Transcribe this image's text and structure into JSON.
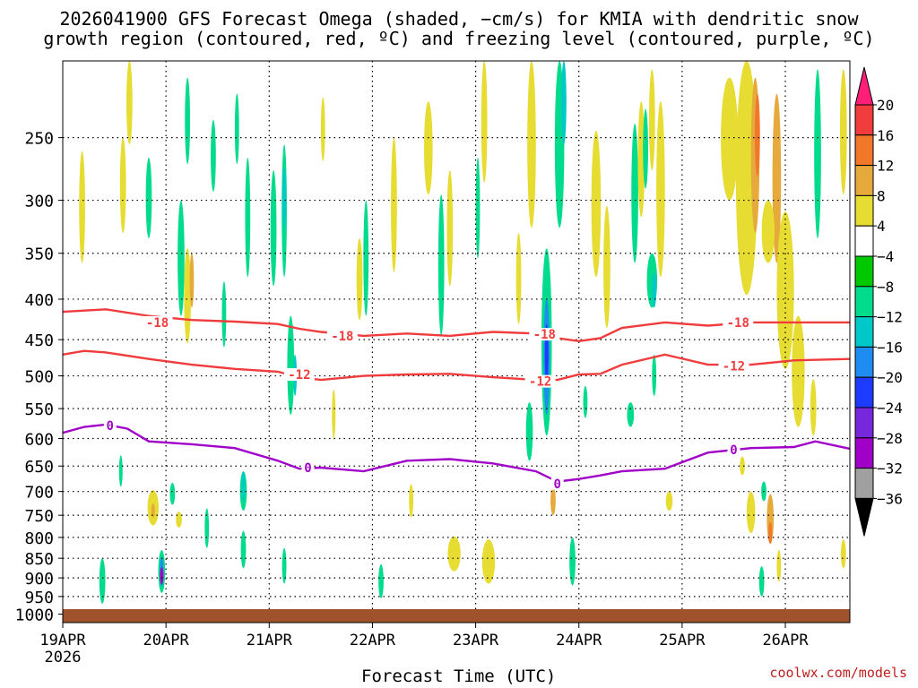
{
  "title_line1": "2026041900 GFS Forecast Omega (shaded, −cm/s) for KMIA with dendritic snow",
  "title_line2": "growth region (contoured, red, ºC) and freezing level (contoured, purple, ºC)",
  "credit": "coolwx.com/models",
  "chart_data": {
    "type": "time-height",
    "xlabel": "Forecast Time (UTC)",
    "ylabel": "Pressure (hPa)",
    "y_ticks": [
      250,
      300,
      350,
      400,
      450,
      500,
      550,
      600,
      650,
      700,
      750,
      800,
      850,
      900,
      950,
      1000
    ],
    "ylim_hpa": [
      200,
      1025
    ],
    "x_ticks": [
      "19APR",
      "20APR",
      "21APR",
      "22APR",
      "23APR",
      "24APR",
      "25APR",
      "26APR"
    ],
    "x_year": "2026",
    "xlim_hours": [
      0,
      183
    ],
    "colorbar": {
      "levels": [
        "20",
        "16",
        "12",
        "8",
        "4",
        "−4",
        "−8",
        "−12",
        "−16",
        "−20",
        "−24",
        "−28",
        "−32",
        "−36"
      ],
      "colors": [
        "#ff1e78",
        "#f03c3c",
        "#f07828",
        "#e6aa3c",
        "#e6dc32",
        "#ffffff",
        "#00c800",
        "#00dc8c",
        "#00c8c8",
        "#1e8cf0",
        "#1e3cff",
        "#7828dc",
        "#a000c8",
        "#a0a0a0",
        "#000000"
      ]
    },
    "contours": [
      {
        "label": "-18",
        "color": "#f03c3c",
        "points": [
          [
            0,
            415
          ],
          [
            10,
            412
          ],
          [
            20,
            420
          ],
          [
            30,
            425
          ],
          [
            40,
            427
          ],
          [
            50,
            430
          ],
          [
            55,
            436
          ],
          [
            60,
            440
          ],
          [
            70,
            445
          ],
          [
            80,
            442
          ],
          [
            90,
            445
          ],
          [
            100,
            440
          ],
          [
            110,
            442
          ],
          [
            115,
            448
          ],
          [
            120,
            452
          ],
          [
            125,
            448
          ],
          [
            130,
            435
          ],
          [
            140,
            428
          ],
          [
            150,
            432
          ],
          [
            160,
            428
          ],
          [
            170,
            428
          ],
          [
            183,
            428
          ]
        ],
        "label_positions": [
          [
            22,
            428
          ],
          [
            65,
            445
          ],
          [
            112,
            443
          ],
          [
            157,
            428
          ]
        ]
      },
      {
        "label": "-12",
        "color": "#f03c3c",
        "points": [
          [
            0,
            470
          ],
          [
            5,
            465
          ],
          [
            10,
            467
          ],
          [
            20,
            476
          ],
          [
            30,
            484
          ],
          [
            40,
            490
          ],
          [
            50,
            494
          ],
          [
            55,
            502
          ],
          [
            60,
            506
          ],
          [
            70,
            500
          ],
          [
            80,
            498
          ],
          [
            90,
            497
          ],
          [
            100,
            502
          ],
          [
            110,
            506
          ],
          [
            115,
            506
          ],
          [
            120,
            498
          ],
          [
            125,
            497
          ],
          [
            130,
            484
          ],
          [
            140,
            470
          ],
          [
            150,
            484
          ],
          [
            160,
            484
          ],
          [
            170,
            478
          ],
          [
            183,
            476
          ]
        ],
        "label_positions": [
          [
            55,
            498
          ],
          [
            111,
            508
          ],
          [
            156,
            486
          ]
        ]
      },
      {
        "label": "0",
        "color": "#a000c8",
        "points": [
          [
            0,
            590
          ],
          [
            5,
            580
          ],
          [
            10,
            576
          ],
          [
            15,
            583
          ],
          [
            20,
            605
          ],
          [
            30,
            610
          ],
          [
            40,
            617
          ],
          [
            50,
            640
          ],
          [
            55,
            655
          ],
          [
            60,
            653
          ],
          [
            70,
            660
          ],
          [
            80,
            640
          ],
          [
            90,
            637
          ],
          [
            100,
            645
          ],
          [
            110,
            660
          ],
          [
            115,
            680
          ],
          [
            120,
            675
          ],
          [
            125,
            668
          ],
          [
            130,
            660
          ],
          [
            140,
            655
          ],
          [
            150,
            625
          ],
          [
            160,
            617
          ],
          [
            170,
            615
          ],
          [
            175,
            605
          ],
          [
            183,
            618
          ]
        ],
        "label_positions": [
          [
            11,
            578
          ],
          [
            57,
            653
          ],
          [
            115,
            684
          ],
          [
            156,
            620
          ]
        ]
      }
    ],
    "omega_cells": [
      {
        "t": 9.2,
        "p": 910,
        "dt": 1.4,
        "dp": 120,
        "v": -8
      },
      {
        "t": 23.0,
        "p": 885,
        "dt": 1.6,
        "dp": 110,
        "v": -8
      },
      {
        "t": 23.0,
        "p": 885,
        "dt": 0.8,
        "dp": 75,
        "v": -16
      },
      {
        "t": 23.0,
        "p": 895,
        "dt": 0.4,
        "dp": 45,
        "v": -28
      },
      {
        "t": 21.0,
        "p": 735,
        "dt": 2.6,
        "dp": 75,
        "v": 6
      },
      {
        "t": 21.0,
        "p": 740,
        "dt": 0.9,
        "dp": 30,
        "v": 9
      },
      {
        "t": 25.5,
        "p": 705,
        "dt": 1.2,
        "dp": 45,
        "v": -8
      },
      {
        "t": 27.0,
        "p": 760,
        "dt": 1.4,
        "dp": 35,
        "v": 5
      },
      {
        "t": 33.5,
        "p": 780,
        "dt": 1.0,
        "dp": 90,
        "v": -8
      },
      {
        "t": 42.0,
        "p": 700,
        "dt": 1.6,
        "dp": 80,
        "v": -8
      },
      {
        "t": 42.0,
        "p": 830,
        "dt": 1.2,
        "dp": 90,
        "v": -8
      },
      {
        "t": 42.0,
        "p": 690,
        "dt": 0.6,
        "dp": 60,
        "v": -12
      },
      {
        "t": 43.0,
        "p": 320,
        "dt": 1.2,
        "dp": 110,
        "v": -8
      },
      {
        "t": 27.5,
        "p": 360,
        "dt": 1.6,
        "dp": 120,
        "v": -8
      },
      {
        "t": 29.0,
        "p": 400,
        "dt": 1.6,
        "dp": 110,
        "v": 5
      },
      {
        "t": 30.0,
        "p": 380,
        "dt": 1.0,
        "dp": 60,
        "v": 8
      },
      {
        "t": 35.0,
        "p": 265,
        "dt": 1.2,
        "dp": 55,
        "v": -8
      },
      {
        "t": 40.5,
        "p": 245,
        "dt": 1.0,
        "dp": 50,
        "v": -8
      },
      {
        "t": 49.0,
        "p": 330,
        "dt": 1.4,
        "dp": 110,
        "v": -8
      },
      {
        "t": 51.5,
        "p": 315,
        "dt": 1.2,
        "dp": 120,
        "v": -8
      },
      {
        "t": 51.5,
        "p": 300,
        "dt": 0.6,
        "dp": 55,
        "v": -12
      },
      {
        "t": 53.0,
        "p": 490,
        "dt": 1.6,
        "dp": 140,
        "v": -8
      },
      {
        "t": 54.0,
        "p": 500,
        "dt": 0.8,
        "dp": 60,
        "v": -12
      },
      {
        "t": 51.5,
        "p": 870,
        "dt": 1.0,
        "dp": 90,
        "v": -8
      },
      {
        "t": 60.5,
        "p": 245,
        "dt": 1.0,
        "dp": 45,
        "v": 5
      },
      {
        "t": 63.0,
        "p": 560,
        "dt": 0.8,
        "dp": 80,
        "v": 5
      },
      {
        "t": 69.0,
        "p": 380,
        "dt": 1.4,
        "dp": 90,
        "v": 5
      },
      {
        "t": 77.0,
        "p": 310,
        "dt": 1.4,
        "dp": 120,
        "v": 5
      },
      {
        "t": 70.5,
        "p": 360,
        "dt": 1.2,
        "dp": 120,
        "v": -8
      },
      {
        "t": 74.0,
        "p": 910,
        "dt": 1.2,
        "dp": 90,
        "v": -8
      },
      {
        "t": 81.0,
        "p": 720,
        "dt": 1.0,
        "dp": 70,
        "v": 5
      },
      {
        "t": 85.0,
        "p": 260,
        "dt": 2.0,
        "dp": 70,
        "v": 5
      },
      {
        "t": 88.0,
        "p": 370,
        "dt": 1.4,
        "dp": 150,
        "v": -8
      },
      {
        "t": 90.0,
        "p": 330,
        "dt": 1.4,
        "dp": 110,
        "v": 5
      },
      {
        "t": 91.0,
        "p": 840,
        "dt": 3.0,
        "dp": 85,
        "v": 5
      },
      {
        "t": 98.0,
        "p": 240,
        "dt": 1.4,
        "dp": 90,
        "v": 5
      },
      {
        "t": 99.0,
        "p": 860,
        "dt": 3.0,
        "dp": 110,
        "v": 5
      },
      {
        "t": 96.5,
        "p": 310,
        "dt": 1.0,
        "dp": 90,
        "v": -8
      },
      {
        "t": 106.0,
        "p": 380,
        "dt": 1.2,
        "dp": 100,
        "v": 5
      },
      {
        "t": 109.0,
        "p": 250,
        "dt": 2.0,
        "dp": 150,
        "v": 5
      },
      {
        "t": 108.5,
        "p": 590,
        "dt": 1.6,
        "dp": 100,
        "v": -8
      },
      {
        "t": 112.5,
        "p": 470,
        "dt": 2.4,
        "dp": 250,
        "v": -8
      },
      {
        "t": 112.5,
        "p": 480,
        "dt": 1.4,
        "dp": 160,
        "v": -16
      },
      {
        "t": 112.5,
        "p": 470,
        "dt": 0.7,
        "dp": 80,
        "v": -22
      },
      {
        "t": 114.0,
        "p": 720,
        "dt": 1.2,
        "dp": 60,
        "v": 8
      },
      {
        "t": 115.5,
        "p": 260,
        "dt": 2.2,
        "dp": 130,
        "v": -8
      },
      {
        "t": 116.5,
        "p": 220,
        "dt": 1.2,
        "dp": 70,
        "v": -12
      },
      {
        "t": 118.5,
        "p": 860,
        "dt": 1.4,
        "dp": 120,
        "v": -8
      },
      {
        "t": 121.5,
        "p": 540,
        "dt": 1.0,
        "dp": 50,
        "v": -8
      },
      {
        "t": 124.0,
        "p": 310,
        "dt": 2.2,
        "dp": 130,
        "v": 5
      },
      {
        "t": 126.5,
        "p": 370,
        "dt": 1.6,
        "dp": 130,
        "v": 5
      },
      {
        "t": 133.0,
        "p": 300,
        "dt": 1.6,
        "dp": 120,
        "v": -8
      },
      {
        "t": 134.5,
        "p": 270,
        "dt": 1.6,
        "dp": 90,
        "v": 5
      },
      {
        "t": 135.5,
        "p": 260,
        "dt": 1.2,
        "dp": 60,
        "v": -8
      },
      {
        "t": 137.0,
        "p": 240,
        "dt": 1.4,
        "dp": 70,
        "v": 5
      },
      {
        "t": 137.0,
        "p": 380,
        "dt": 2.4,
        "dp": 60,
        "v": -8
      },
      {
        "t": 137.5,
        "p": 390,
        "dt": 1.0,
        "dp": 40,
        "v": -12
      },
      {
        "t": 137.5,
        "p": 500,
        "dt": 1.0,
        "dp": 60,
        "v": -8
      },
      {
        "t": 139.0,
        "p": 300,
        "dt": 2.0,
        "dp": 150,
        "v": 5
      },
      {
        "t": 155.0,
        "p": 255,
        "dt": 4.0,
        "dp": 90,
        "v": 5
      },
      {
        "t": 159.0,
        "p": 280,
        "dt": 5.0,
        "dp": 230,
        "v": 5
      },
      {
        "t": 161.0,
        "p": 270,
        "dt": 2.0,
        "dp": 120,
        "v": 10
      },
      {
        "t": 161.5,
        "p": 250,
        "dt": 1.2,
        "dp": 60,
        "v": 14
      },
      {
        "t": 166.0,
        "p": 290,
        "dt": 2.0,
        "dp": 140,
        "v": 8
      },
      {
        "t": 164.0,
        "p": 330,
        "dt": 3.0,
        "dp": 60,
        "v": 5
      },
      {
        "t": 168.0,
        "p": 400,
        "dt": 4.0,
        "dp": 180,
        "v": 5
      },
      {
        "t": 171.0,
        "p": 500,
        "dt": 3.0,
        "dp": 160,
        "v": 5
      },
      {
        "t": 174.5,
        "p": 550,
        "dt": 1.4,
        "dp": 90,
        "v": 5
      },
      {
        "t": 175.5,
        "p": 270,
        "dt": 1.6,
        "dp": 130,
        "v": -8
      },
      {
        "t": 181.5,
        "p": 250,
        "dt": 1.6,
        "dp": 90,
        "v": 5
      },
      {
        "t": 158.0,
        "p": 650,
        "dt": 1.2,
        "dp": 35,
        "v": 5
      },
      {
        "t": 160.0,
        "p": 745,
        "dt": 2.0,
        "dp": 90,
        "v": 5
      },
      {
        "t": 164.5,
        "p": 760,
        "dt": 1.6,
        "dp": 110,
        "v": 8
      },
      {
        "t": 164.5,
        "p": 790,
        "dt": 0.8,
        "dp": 50,
        "v": 12
      },
      {
        "t": 163.0,
        "p": 700,
        "dt": 1.2,
        "dp": 40,
        "v": -8
      },
      {
        "t": 166.5,
        "p": 870,
        "dt": 1.0,
        "dp": 80,
        "v": 5
      },
      {
        "t": 162.5,
        "p": 910,
        "dt": 1.2,
        "dp": 80,
        "v": -8
      },
      {
        "t": 132.0,
        "p": 560,
        "dt": 1.6,
        "dp": 40,
        "v": -8
      },
      {
        "t": 141.0,
        "p": 720,
        "dt": 1.6,
        "dp": 40,
        "v": 5
      },
      {
        "t": 181.5,
        "p": 840,
        "dt": 1.2,
        "dp": 70,
        "v": 5
      },
      {
        "t": 14.0,
        "p": 290,
        "dt": 1.4,
        "dp": 80,
        "v": 5
      },
      {
        "t": 15.5,
        "p": 220,
        "dt": 1.4,
        "dp": 70,
        "v": 5
      },
      {
        "t": 4.5,
        "p": 310,
        "dt": 1.4,
        "dp": 100,
        "v": 5
      },
      {
        "t": 20.0,
        "p": 300,
        "dt": 1.4,
        "dp": 70,
        "v": -8
      },
      {
        "t": 29.0,
        "p": 240,
        "dt": 1.2,
        "dp": 60,
        "v": -8
      },
      {
        "t": 37.5,
        "p": 420,
        "dt": 1.0,
        "dp": 80,
        "v": -8
      },
      {
        "t": 13.5,
        "p": 660,
        "dt": 0.8,
        "dp": 60,
        "v": -8
      }
    ]
  }
}
